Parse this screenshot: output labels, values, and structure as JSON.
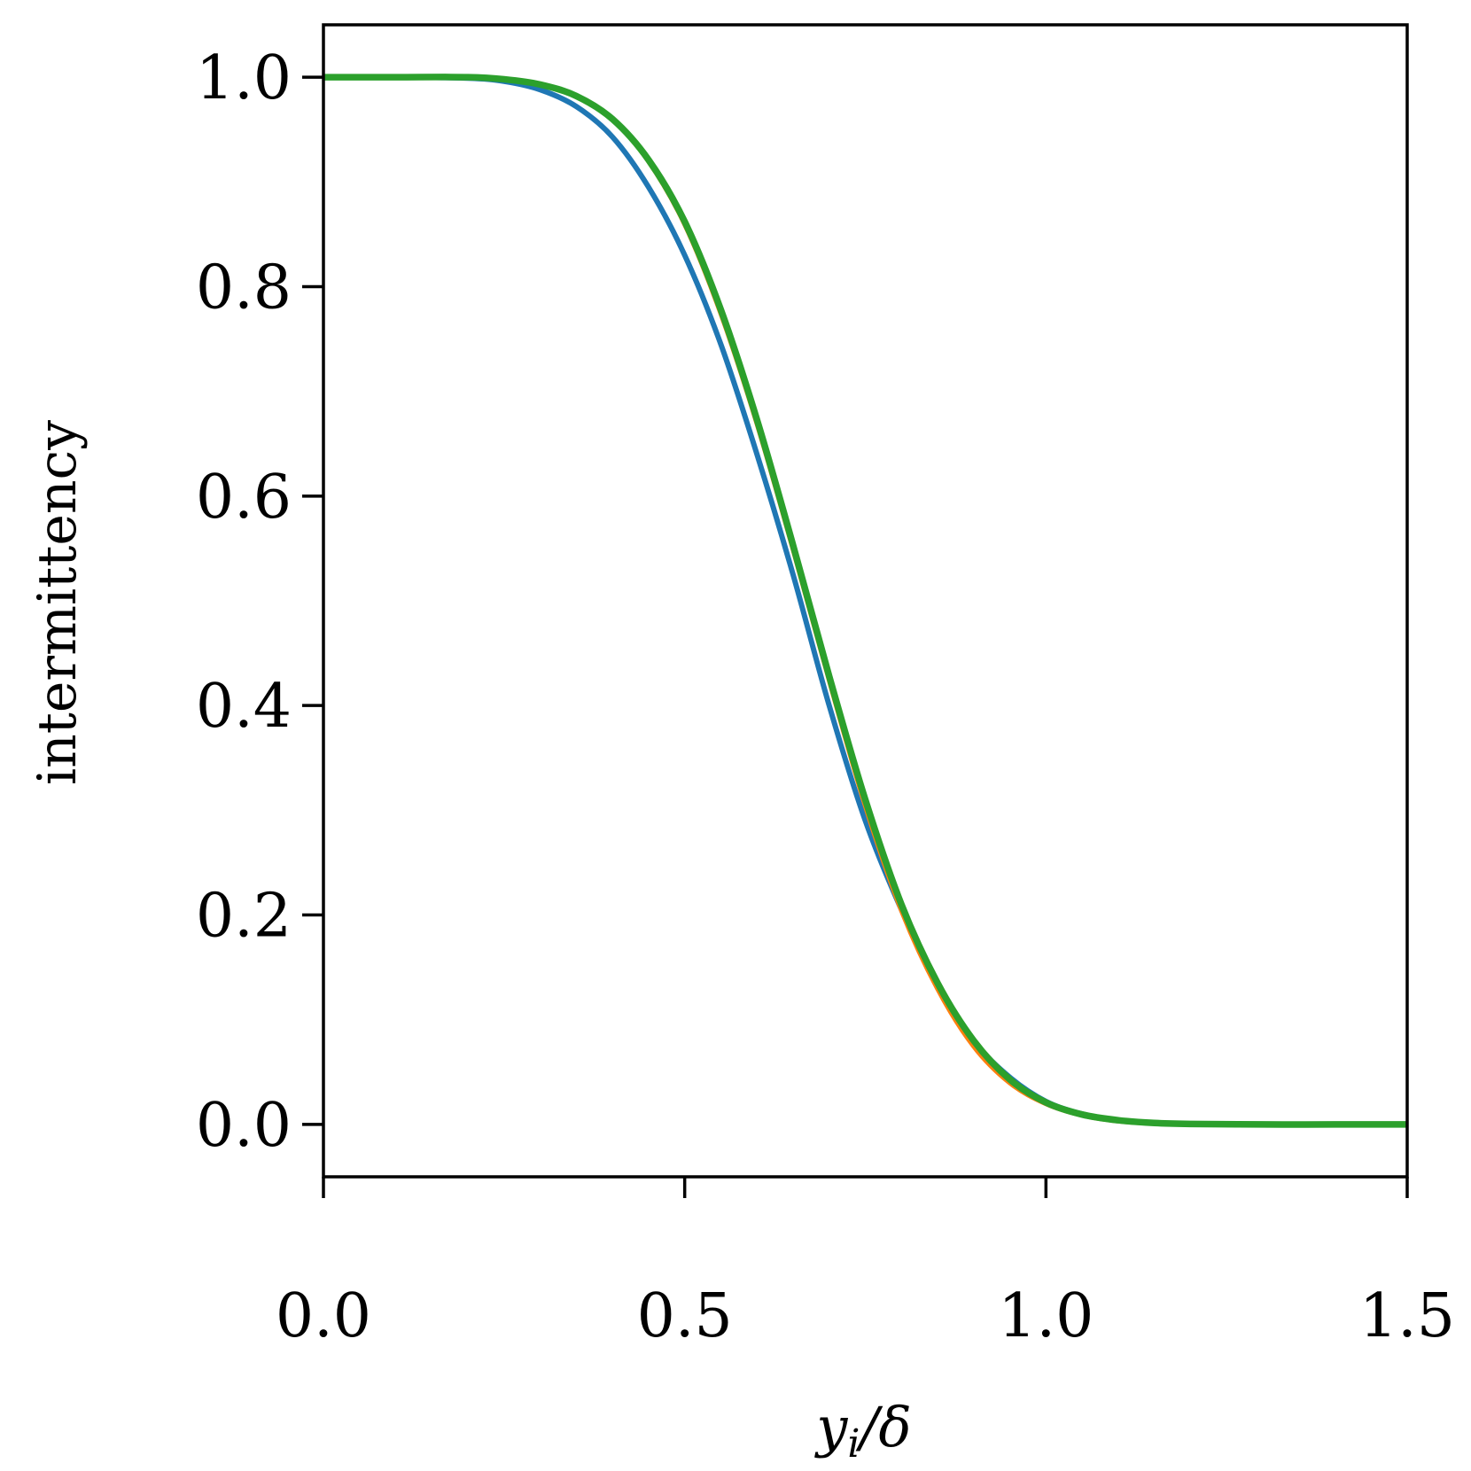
{
  "chart_data": {
    "type": "line",
    "title": "",
    "xlabel": "y_i/δ",
    "xlabel_parts": {
      "main": "y",
      "sub": "i",
      "rest": "/δ"
    },
    "ylabel": "intermittency",
    "xlim": [
      0.0,
      1.5
    ],
    "ylim": [
      -0.05,
      1.05
    ],
    "xticks": [
      0.0,
      0.5,
      1.0,
      1.5
    ],
    "xtick_labels": [
      "0.0",
      "0.5",
      "1.0",
      "1.5"
    ],
    "yticks": [
      0.0,
      0.2,
      0.4,
      0.6,
      0.8,
      1.0
    ],
    "ytick_labels": [
      "0.0",
      "0.2",
      "0.4",
      "0.6",
      "0.8",
      "1.0"
    ],
    "grid": false,
    "legend": false,
    "series": [
      {
        "color": "#1f77b4",
        "x": [
          0.0,
          0.1,
          0.2,
          0.25,
          0.3,
          0.35,
          0.4,
          0.45,
          0.5,
          0.55,
          0.6,
          0.65,
          0.7,
          0.75,
          0.8,
          0.85,
          0.9,
          0.95,
          1.0,
          1.05,
          1.1,
          1.15,
          1.2,
          1.3,
          1.4,
          1.5
        ],
        "y": [
          1.0,
          1.0,
          0.999,
          0.996,
          0.988,
          0.972,
          0.943,
          0.895,
          0.83,
          0.745,
          0.64,
          0.525,
          0.4,
          0.29,
          0.205,
          0.135,
          0.08,
          0.045,
          0.022,
          0.01,
          0.004,
          0.0015,
          0.0005,
          0.0,
          0.0,
          0.0
        ]
      },
      {
        "color": "#ff7f0e",
        "x": [
          0.0,
          0.1,
          0.2,
          0.25,
          0.3,
          0.35,
          0.4,
          0.45,
          0.5,
          0.55,
          0.6,
          0.65,
          0.7,
          0.75,
          0.8,
          0.85,
          0.9,
          0.95,
          1.0,
          1.05,
          1.1,
          1.15,
          1.2,
          1.3,
          1.4,
          1.5
        ],
        "y": [
          1.0,
          1.0,
          1.0,
          0.998,
          0.993,
          0.982,
          0.96,
          0.92,
          0.86,
          0.775,
          0.67,
          0.55,
          0.425,
          0.305,
          0.205,
          0.13,
          0.075,
          0.04,
          0.02,
          0.009,
          0.0035,
          0.0012,
          0.0004,
          0.0,
          0.0,
          0.0
        ]
      },
      {
        "color": "#2ca02c",
        "x": [
          0.0,
          0.1,
          0.2,
          0.25,
          0.3,
          0.35,
          0.4,
          0.45,
          0.5,
          0.55,
          0.6,
          0.65,
          0.7,
          0.75,
          0.8,
          0.85,
          0.9,
          0.95,
          1.0,
          1.05,
          1.1,
          1.15,
          1.2,
          1.3,
          1.4,
          1.5
        ],
        "y": [
          1.0,
          1.0,
          1.0,
          0.998,
          0.993,
          0.982,
          0.96,
          0.921,
          0.862,
          0.778,
          0.673,
          0.553,
          0.428,
          0.31,
          0.21,
          0.135,
          0.08,
          0.043,
          0.021,
          0.0095,
          0.004,
          0.0014,
          0.0005,
          0.0,
          0.0,
          0.0
        ]
      }
    ]
  }
}
